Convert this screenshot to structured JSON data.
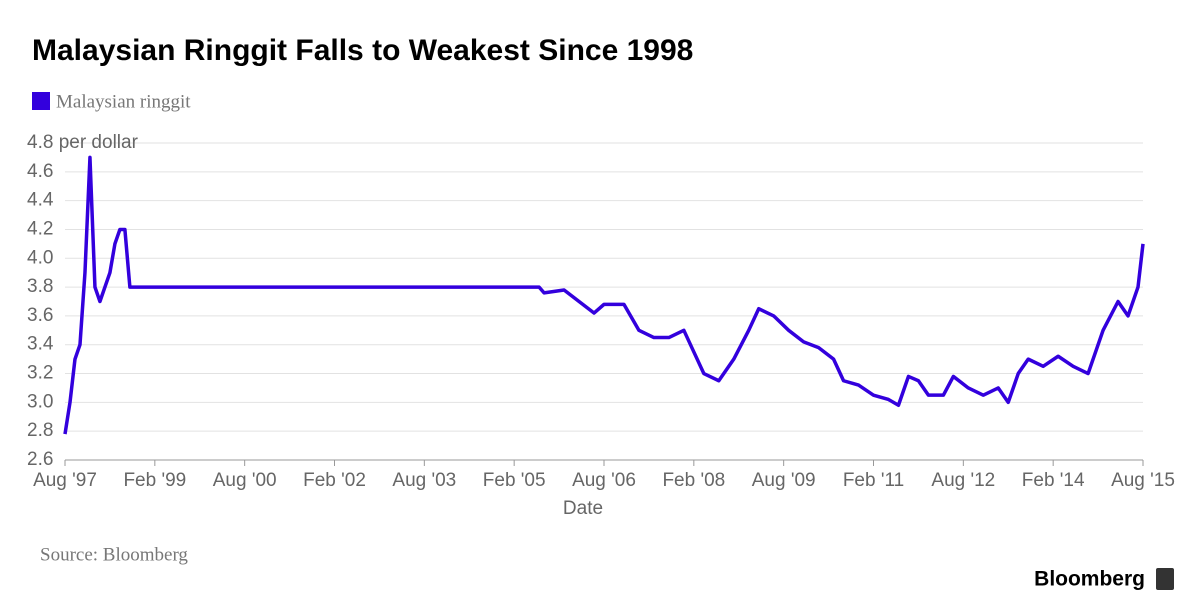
{
  "chart_data": {
    "type": "line",
    "title": "Malaysian Ringgit Falls to Weakest Since 1998",
    "x_label": "Date",
    "source": "Source: Bloomberg",
    "logo": "Bloomberg",
    "grid": true,
    "ylim": [
      2.6,
      4.8
    ],
    "yticks": [
      2.6,
      2.8,
      {
        "value": 3,
        "label": "3.0"
      },
      3.2,
      3.4,
      3.6,
      3.8,
      {
        "value": 4,
        "label": "4.0"
      },
      4.2,
      4.4,
      4.6,
      {
        "value": 4.8,
        "label": "4.8 per dollar"
      }
    ],
    "xlim": [
      "1997-08",
      "2015-08"
    ],
    "xticks": [
      {
        "value": "1997-08",
        "label": "Aug '97"
      },
      {
        "value": "1999-02",
        "label": "Feb '99"
      },
      {
        "value": "2000-08",
        "label": "Aug '00"
      },
      {
        "value": "2002-02",
        "label": "Feb '02"
      },
      {
        "value": "2003-08",
        "label": "Aug '03"
      },
      {
        "value": "2005-02",
        "label": "Feb '05"
      },
      {
        "value": "2006-08",
        "label": "Aug '06"
      },
      {
        "value": "2008-02",
        "label": "Feb '08"
      },
      {
        "value": "2009-08",
        "label": "Aug '09"
      },
      {
        "value": "2011-02",
        "label": "Feb '11"
      },
      {
        "value": "2012-08",
        "label": "Aug '12"
      },
      {
        "value": "2014-02",
        "label": "Feb '14"
      },
      {
        "value": "2015-08",
        "label": "Aug '15"
      }
    ],
    "x": [
      "1997-08",
      "1997-09",
      "1997-10",
      "1997-11",
      "1997-12",
      "1998-01",
      "1998-02",
      "1998-03",
      "1998-04",
      "1998-05",
      "1998-06",
      "1998-07",
      "1998-08",
      "1998-09",
      "2005-07",
      "2005-08",
      "2005-12",
      "2006-03",
      "2006-06",
      "2006-08",
      "2006-12",
      "2007-03",
      "2007-06",
      "2007-09",
      "2007-12",
      "2008-02",
      "2008-04",
      "2008-07",
      "2008-10",
      "2009-01",
      "2009-03",
      "2009-06",
      "2009-09",
      "2009-12",
      "2010-03",
      "2010-06",
      "2010-08",
      "2010-11",
      "2011-02",
      "2011-05",
      "2011-07",
      "2011-09",
      "2011-11",
      "2012-01",
      "2012-04",
      "2012-06",
      "2012-09",
      "2012-12",
      "2013-03",
      "2013-05",
      "2013-07",
      "2013-09",
      "2013-12",
      "2014-03",
      "2014-06",
      "2014-09",
      "2014-12",
      "2015-03",
      "2015-05",
      "2015-07",
      "2015-08"
    ],
    "series": [
      {
        "name": "Malaysian ringgit",
        "color": "#3300dd",
        "values": [
          2.78,
          3.0,
          3.3,
          3.4,
          3.9,
          4.7,
          3.8,
          3.7,
          3.8,
          3.9,
          4.1,
          4.2,
          4.2,
          3.8,
          3.8,
          3.76,
          3.78,
          3.7,
          3.62,
          3.68,
          3.68,
          3.5,
          3.45,
          3.45,
          3.5,
          3.35,
          3.2,
          3.15,
          3.3,
          3.5,
          3.65,
          3.6,
          3.5,
          3.42,
          3.38,
          3.3,
          3.15,
          3.12,
          3.05,
          3.02,
          2.98,
          3.18,
          3.15,
          3.05,
          3.05,
          3.18,
          3.1,
          3.05,
          3.1,
          3.0,
          3.2,
          3.3,
          3.25,
          3.32,
          3.25,
          3.2,
          3.5,
          3.7,
          3.6,
          3.8,
          4.1
        ]
      }
    ]
  }
}
